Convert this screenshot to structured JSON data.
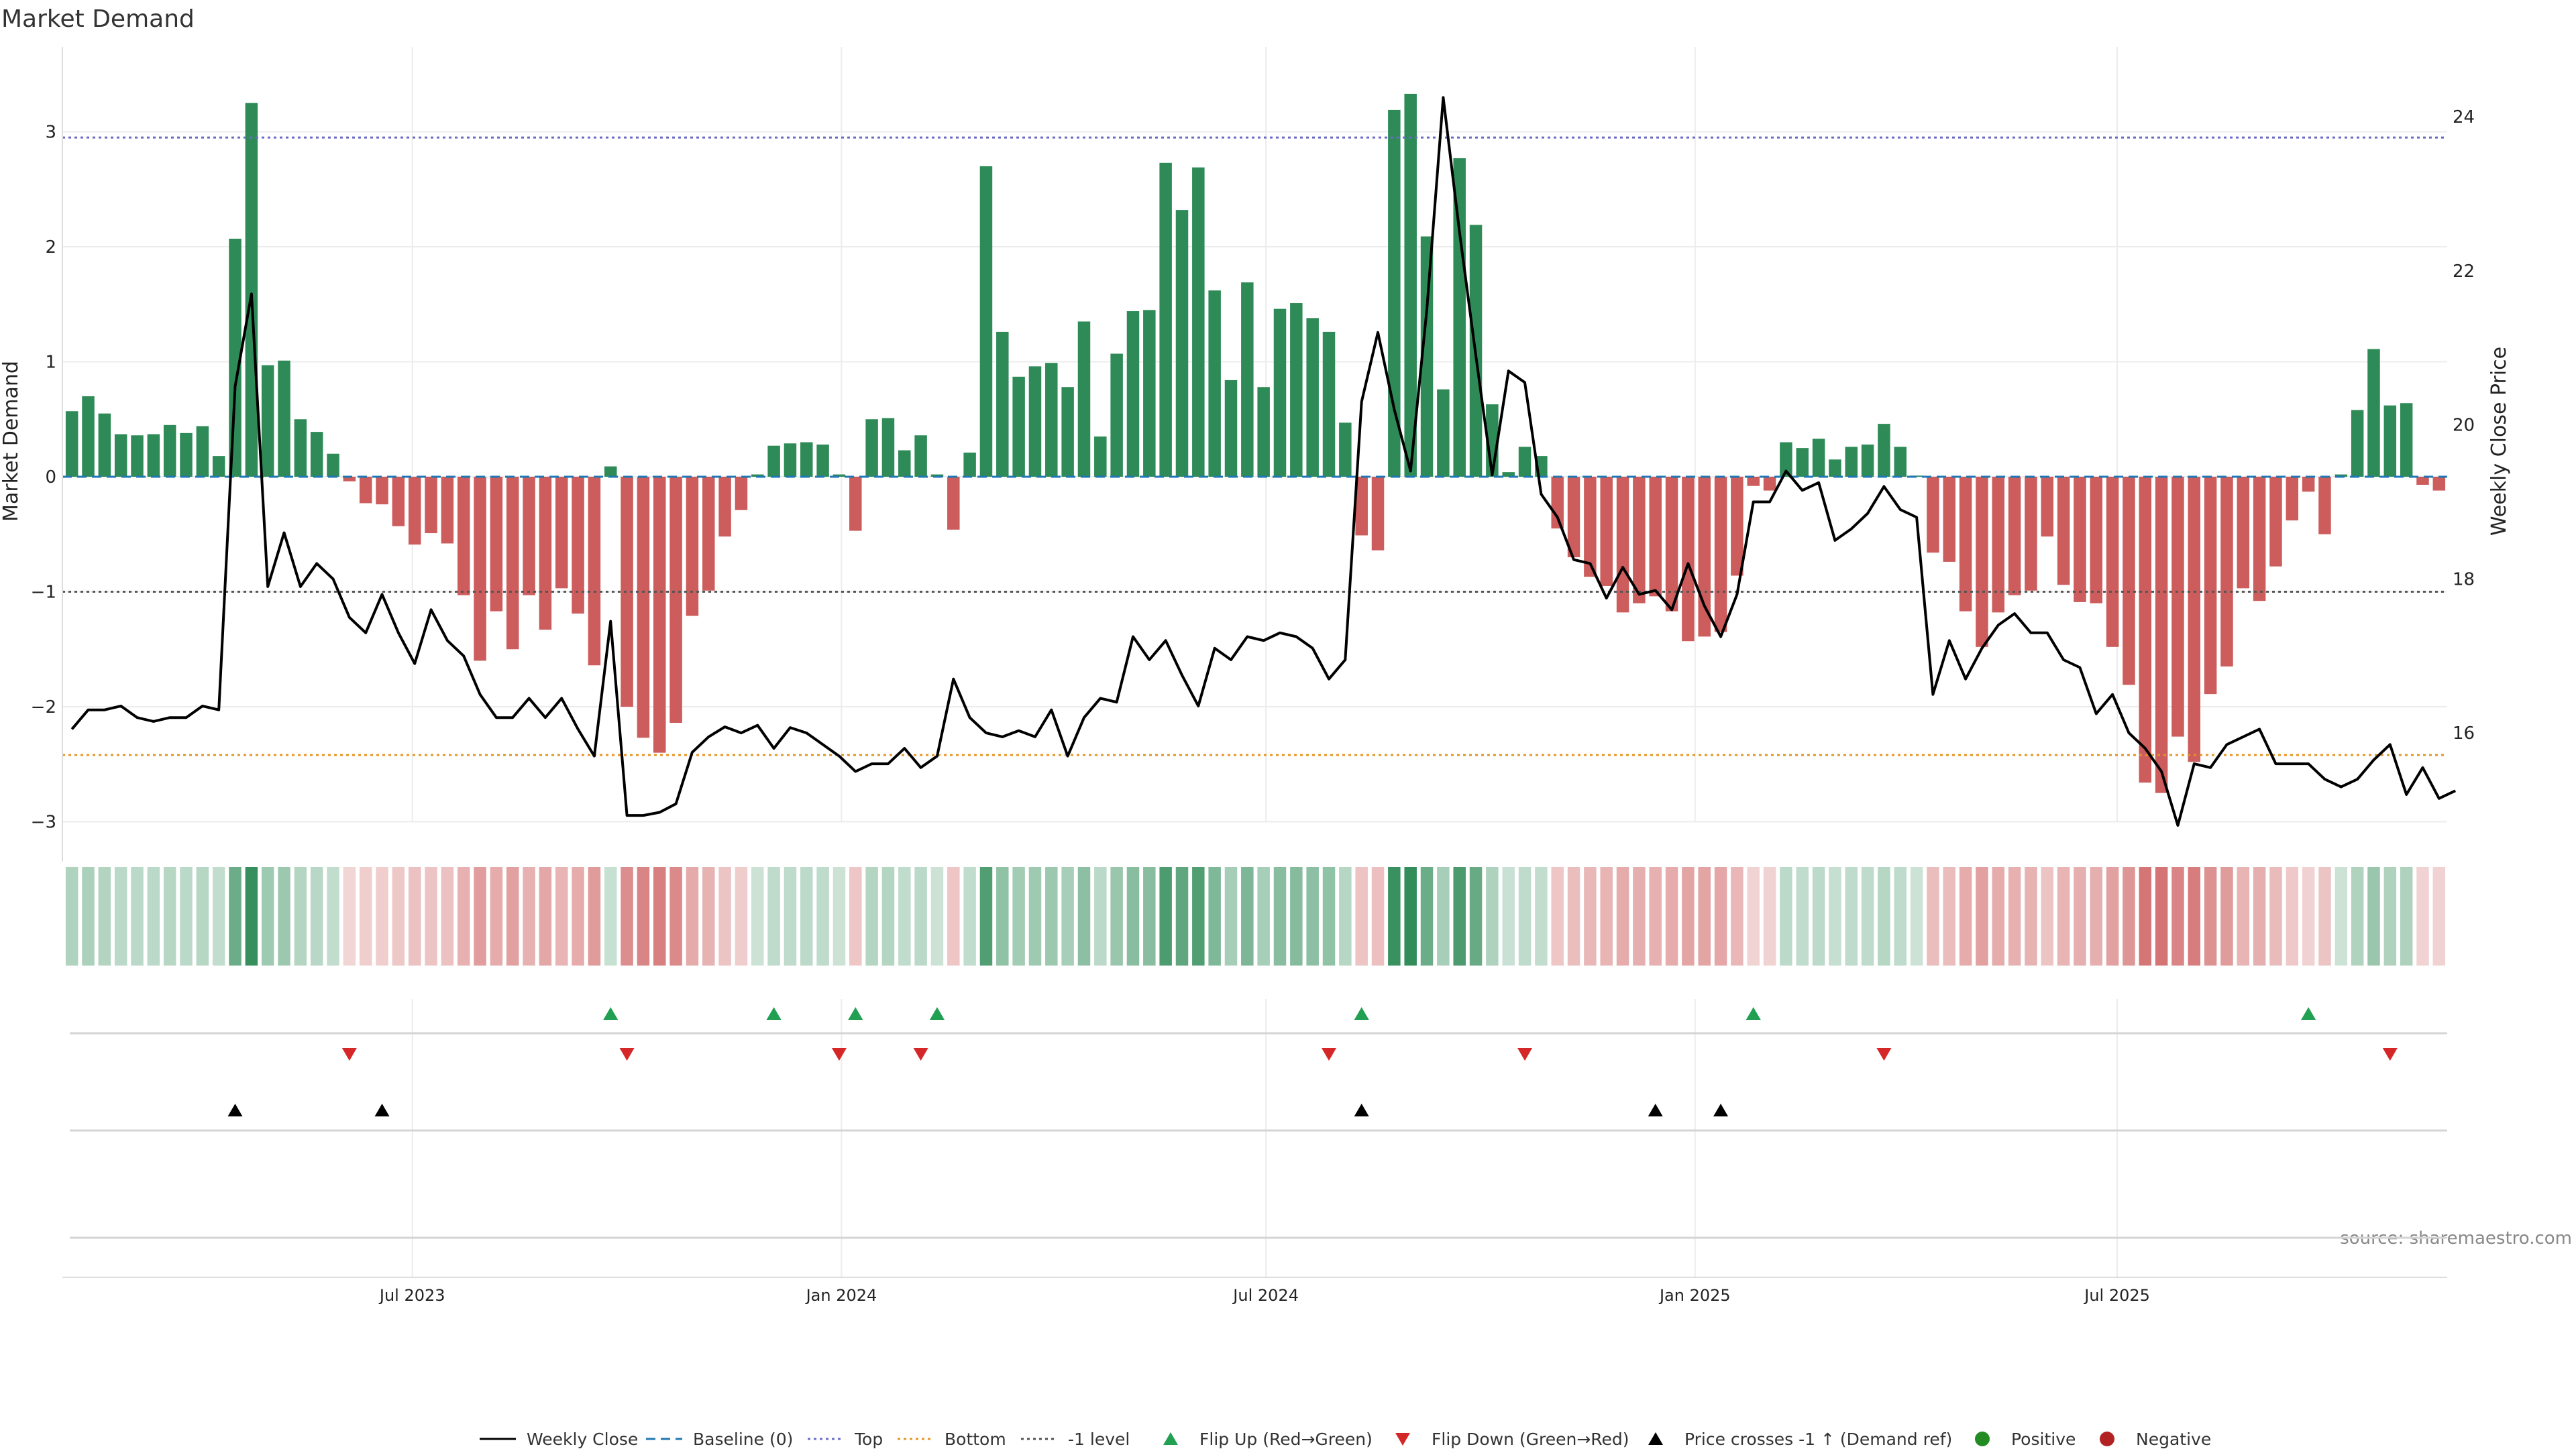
{
  "chart_data": {
    "type": "bar",
    "title": "Market Demand",
    "ylabel": "Market Demand",
    "y2label": "Weekly Close Price",
    "ylim": [
      -3.3,
      3.7
    ],
    "y2lim": [
      14.4,
      24.85
    ],
    "yticks": [
      "3",
      "2",
      "1",
      "0",
      "−1",
      "−2",
      "−3"
    ],
    "y2ticks": [
      "24",
      "22",
      "20",
      "18",
      "16"
    ],
    "x_ticks": [
      "Jul 2023",
      "Jan 2024",
      "Jul 2024",
      "Jan 2025",
      "Jul 2025"
    ],
    "reference_lines": {
      "top": 2.95,
      "bottom": -2.42,
      "minus_one": -1.0,
      "baseline": 0
    },
    "colors": {
      "positive": "#2e8b57",
      "negative": "#cd5c5c",
      "price": "#000000",
      "top": "#6b6bc6",
      "bottom": "#e69523",
      "minus_one": "#555555",
      "baseline": "#1f77b4",
      "flip_up": "#22a052",
      "flip_down": "#d62728",
      "cross": "#000000",
      "legend_positive": "#228b22",
      "legend_negative": "#b22222"
    },
    "start_week": "2023-02-05",
    "demand": [
      0.57,
      0.7,
      0.55,
      0.37,
      0.36,
      0.37,
      0.45,
      0.38,
      0.44,
      0.18,
      2.07,
      3.25,
      0.97,
      1.01,
      0.5,
      0.39,
      0.2,
      -0.04,
      -0.23,
      -0.24,
      -0.43,
      -0.59,
      -0.49,
      -0.58,
      -1.03,
      -1.6,
      -1.17,
      -1.5,
      -1.03,
      -1.33,
      -0.97,
      -1.19,
      -1.64,
      0.09,
      -2.0,
      -2.27,
      -2.4,
      -2.14,
      -1.21,
      -0.99,
      -0.52,
      -0.29,
      0.02,
      0.27,
      0.29,
      0.3,
      0.28,
      0.02,
      -0.47,
      0.5,
      0.51,
      0.23,
      0.36,
      0.02,
      -0.46,
      0.21,
      2.7,
      1.26,
      0.87,
      0.96,
      0.99,
      0.78,
      1.35,
      0.35,
      1.07,
      1.44,
      1.45,
      2.73,
      2.32,
      2.69,
      1.62,
      0.84,
      1.69,
      0.78,
      1.46,
      1.51,
      1.38,
      1.26,
      0.47,
      -0.51,
      -0.64,
      3.19,
      3.33,
      2.09,
      0.76,
      2.77,
      2.19,
      0.63,
      0.04,
      0.26,
      0.18,
      -0.45,
      -0.7,
      -0.87,
      -0.95,
      -1.18,
      -1.1,
      -1.04,
      -1.17,
      -1.43,
      -1.39,
      -1.35,
      -0.86,
      -0.08,
      -0.12,
      0.3,
      0.25,
      0.33,
      0.15,
      0.26,
      0.28,
      0.46,
      0.26,
      0.01,
      -0.66,
      -0.74,
      -1.17,
      -1.48,
      -1.18,
      -1.03,
      -0.99,
      -0.52,
      -0.94,
      -1.09,
      -1.1,
      -1.48,
      -1.81,
      -2.66,
      -2.75,
      -2.26,
      -2.48,
      -1.89,
      -1.65,
      -0.97,
      -1.08,
      -0.78,
      -0.38,
      -0.13,
      -0.5,
      0.02,
      0.58,
      1.11,
      0.62,
      0.64,
      -0.07,
      -0.12
    ],
    "price": [
      16.05,
      16.3,
      16.3,
      16.35,
      16.2,
      16.15,
      16.2,
      16.2,
      16.35,
      16.3,
      20.5,
      21.7,
      17.9,
      18.6,
      17.9,
      18.2,
      18.0,
      17.5,
      17.3,
      17.8,
      17.3,
      16.9,
      17.6,
      17.2,
      17.0,
      16.5,
      16.2,
      16.2,
      16.45,
      16.2,
      16.45,
      16.05,
      15.7,
      17.45,
      14.93,
      14.93,
      14.97,
      15.08,
      15.75,
      15.95,
      16.08,
      16.0,
      16.1,
      15.8,
      16.07,
      16.0,
      15.85,
      15.7,
      15.5,
      15.6,
      15.6,
      15.8,
      15.55,
      15.7,
      16.7,
      16.2,
      16.0,
      15.95,
      16.03,
      15.95,
      16.3,
      15.7,
      16.2,
      16.45,
      16.4,
      17.25,
      16.95,
      17.2,
      16.75,
      16.35,
      17.1,
      16.95,
      17.25,
      17.2,
      17.3,
      17.25,
      17.1,
      16.7,
      16.95,
      20.3,
      21.2,
      20.2,
      19.4,
      21.5,
      24.25,
      22.5,
      20.9,
      19.35,
      20.7,
      20.55,
      19.1,
      18.8,
      18.25,
      18.2,
      17.75,
      18.15,
      17.8,
      17.85,
      17.6,
      18.2,
      17.65,
      17.25,
      17.8,
      19.0,
      19.0,
      19.4,
      19.15,
      19.25,
      18.5,
      18.65,
      18.85,
      19.2,
      18.9,
      18.8,
      16.5,
      17.2,
      16.7,
      17.1,
      17.4,
      17.55,
      17.3,
      17.3,
      16.95,
      16.85,
      16.25,
      16.5,
      16.0,
      15.8,
      15.5,
      14.8,
      15.6,
      15.55,
      15.85,
      15.95,
      16.05,
      15.6,
      15.6,
      15.6,
      15.4,
      15.3,
      15.4,
      15.65,
      15.85,
      15.2,
      15.55,
      15.15,
      15.25
    ],
    "flip_up_weeks": [
      33,
      43,
      48,
      53,
      79,
      103,
      137
    ],
    "flip_down_weeks": [
      17,
      34,
      47,
      52,
      77,
      89,
      111,
      142
    ],
    "cross_up_weeks": [
      10,
      19,
      79,
      97,
      101
    ],
    "source": "source: sharemaestro.com",
    "legend": [
      {
        "label": "Weekly Close",
        "kind": "line-solid",
        "color": "#000000"
      },
      {
        "label": "Baseline (0)",
        "kind": "line-dash",
        "color": "#1f77b4"
      },
      {
        "label": "Top",
        "kind": "line-dot",
        "color": "#6b6bc6"
      },
      {
        "label": "Bottom",
        "kind": "line-dot",
        "color": "#e69523"
      },
      {
        "label": "-1 level",
        "kind": "line-dot",
        "color": "#555555"
      },
      {
        "label": "Flip Up (Red→Green)",
        "kind": "tri-up",
        "color": "#22a052"
      },
      {
        "label": "Flip Down (Green→Red)",
        "kind": "tri-down",
        "color": "#d62728"
      },
      {
        "label": "Price crosses -1 ↑ (Demand ref)",
        "kind": "tri-up",
        "color": "#000000"
      },
      {
        "label": "Positive",
        "kind": "dot",
        "color": "#228b22"
      },
      {
        "label": "Negative",
        "kind": "dot",
        "color": "#b22222"
      }
    ]
  }
}
